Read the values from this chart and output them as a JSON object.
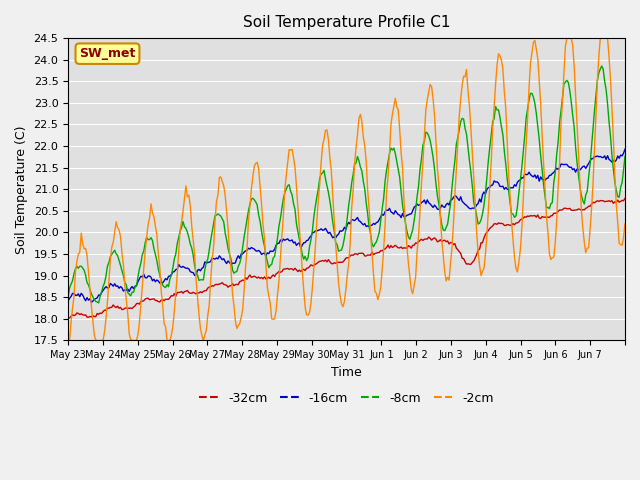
{
  "title": "Soil Temperature Profile C1",
  "xlabel": "Time",
  "ylabel": "Soil Temperature (C)",
  "ylim": [
    17.5,
    24.5
  ],
  "yticks": [
    17.5,
    18.0,
    18.5,
    19.0,
    19.5,
    20.0,
    20.5,
    21.0,
    21.5,
    22.0,
    22.5,
    23.0,
    23.5,
    24.0,
    24.5
  ],
  "xtick_positions": [
    0,
    1,
    2,
    3,
    4,
    5,
    6,
    7,
    8,
    9,
    10,
    11,
    12,
    13,
    14,
    15,
    16
  ],
  "xtick_labels": [
    "May 23",
    "May 24",
    "May 25",
    "May 26",
    "May 27",
    "May 28",
    "May 29",
    "May 30",
    "May 31",
    "Jun 1",
    "Jun 2",
    "Jun 3",
    "Jun 4",
    "Jun 5",
    "Jun 6",
    "Jun 7",
    ""
  ],
  "colors": {
    "-32cm": "#cc0000",
    "-16cm": "#0000cc",
    "-8cm": "#00aa00",
    "-2cm": "#ff8800"
  },
  "legend_label": "SW_met",
  "background_color": "#e0e0e0",
  "grid_color": "#ffffff"
}
